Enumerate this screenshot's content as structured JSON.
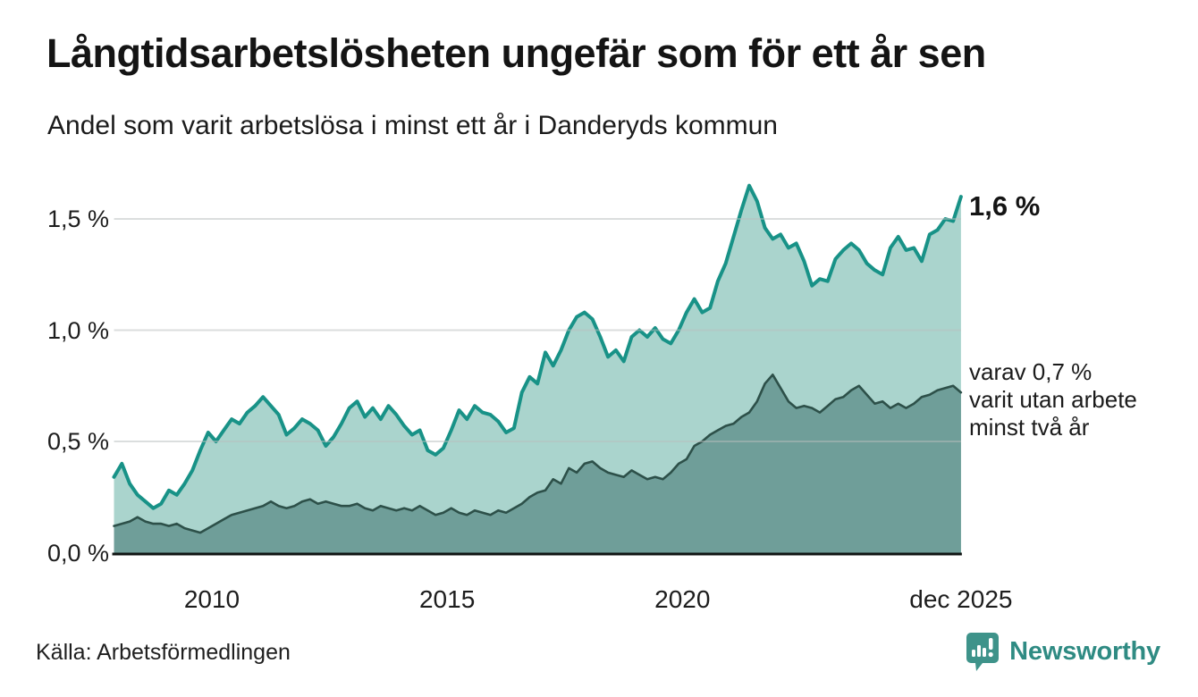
{
  "title": "Långtidsarbetslösheten ungefär som för ett år sen",
  "subtitle": "Andel som varit arbetslösa i minst ett år i Danderyds kommun",
  "annotations": {
    "end_total": "1,6 %",
    "end_sub_line1": "varav 0,7 %",
    "end_sub_line2": "varit utan arbete",
    "end_sub_line3": "minst två år"
  },
  "source": "Källa: Arbetsförmedlingen",
  "logo": {
    "name": "Newsworthy"
  },
  "colors": {
    "background": "#ffffff",
    "title_text": "#141414",
    "grid": "#b9bfbe",
    "axis": "#101513",
    "total_line": "#189287",
    "total_fill": "#aad4cd",
    "two_year_line": "#2d5049",
    "two_year_fill": "#6f9e99",
    "logo_teal": "#3e938a",
    "logo_text": "#2f8b83"
  },
  "chart_data": {
    "type": "area",
    "title": "Långtidsarbetslösheten ungefär som för ett år sen",
    "subtitle": "Andel som varit arbetslösa i minst ett år i Danderyds kommun",
    "x_start": 2007.92,
    "x_end": 2025.92,
    "ylim": [
      0,
      1.75
    ],
    "grid": true,
    "yticks": [
      {
        "label": "0,0 %",
        "value": 0.0
      },
      {
        "label": "0,5 %",
        "value": 0.5
      },
      {
        "label": "1,0 %",
        "value": 1.0
      },
      {
        "label": "1,5 %",
        "value": 1.5
      }
    ],
    "xticks": [
      {
        "label": "2010",
        "year": 2010
      },
      {
        "label": "2015",
        "year": 2015
      },
      {
        "label": "2020",
        "year": 2020
      },
      {
        "label": "dec 2025",
        "year": 2025.92
      }
    ],
    "series": [
      {
        "name": "Andel arbetslösa minst ett år",
        "end_value_label": "1,6 %",
        "end_value": 1.6,
        "values": [
          0.34,
          0.4,
          0.31,
          0.26,
          0.23,
          0.2,
          0.22,
          0.28,
          0.26,
          0.31,
          0.37,
          0.46,
          0.54,
          0.5,
          0.55,
          0.6,
          0.58,
          0.63,
          0.66,
          0.7,
          0.66,
          0.62,
          0.53,
          0.56,
          0.6,
          0.58,
          0.55,
          0.48,
          0.52,
          0.58,
          0.65,
          0.68,
          0.61,
          0.65,
          0.6,
          0.66,
          0.62,
          0.57,
          0.53,
          0.55,
          0.46,
          0.44,
          0.47,
          0.55,
          0.64,
          0.6,
          0.66,
          0.63,
          0.62,
          0.59,
          0.54,
          0.56,
          0.72,
          0.79,
          0.76,
          0.9,
          0.84,
          0.91,
          1.0,
          1.06,
          1.08,
          1.05,
          0.97,
          0.88,
          0.91,
          0.86,
          0.97,
          1.0,
          0.97,
          1.01,
          0.96,
          0.94,
          1.0,
          1.08,
          1.14,
          1.08,
          1.1,
          1.22,
          1.3,
          1.42,
          1.54,
          1.65,
          1.58,
          1.46,
          1.41,
          1.43,
          1.37,
          1.39,
          1.31,
          1.2,
          1.23,
          1.22,
          1.32,
          1.36,
          1.39,
          1.36,
          1.3,
          1.27,
          1.25,
          1.37,
          1.42,
          1.36,
          1.37,
          1.31,
          1.43,
          1.45,
          1.5,
          1.49,
          1.6
        ]
      },
      {
        "name": "varav utan arbete minst två år",
        "end_value_label": "0,7 %",
        "end_value": 0.7,
        "values": [
          0.12,
          0.13,
          0.14,
          0.16,
          0.14,
          0.13,
          0.13,
          0.12,
          0.13,
          0.11,
          0.1,
          0.09,
          0.11,
          0.13,
          0.15,
          0.17,
          0.18,
          0.19,
          0.2,
          0.21,
          0.23,
          0.21,
          0.2,
          0.21,
          0.23,
          0.24,
          0.22,
          0.23,
          0.22,
          0.21,
          0.21,
          0.22,
          0.2,
          0.19,
          0.21,
          0.2,
          0.19,
          0.2,
          0.19,
          0.21,
          0.19,
          0.17,
          0.18,
          0.2,
          0.18,
          0.17,
          0.19,
          0.18,
          0.17,
          0.19,
          0.18,
          0.2,
          0.22,
          0.25,
          0.27,
          0.28,
          0.33,
          0.31,
          0.38,
          0.36,
          0.4,
          0.41,
          0.38,
          0.36,
          0.35,
          0.34,
          0.37,
          0.35,
          0.33,
          0.34,
          0.33,
          0.36,
          0.4,
          0.42,
          0.48,
          0.5,
          0.53,
          0.55,
          0.57,
          0.58,
          0.61,
          0.63,
          0.68,
          0.76,
          0.8,
          0.74,
          0.68,
          0.65,
          0.66,
          0.65,
          0.63,
          0.66,
          0.69,
          0.7,
          0.73,
          0.75,
          0.71,
          0.67,
          0.68,
          0.65,
          0.67,
          0.65,
          0.67,
          0.7,
          0.71,
          0.73,
          0.74,
          0.75,
          0.72
        ]
      }
    ]
  }
}
